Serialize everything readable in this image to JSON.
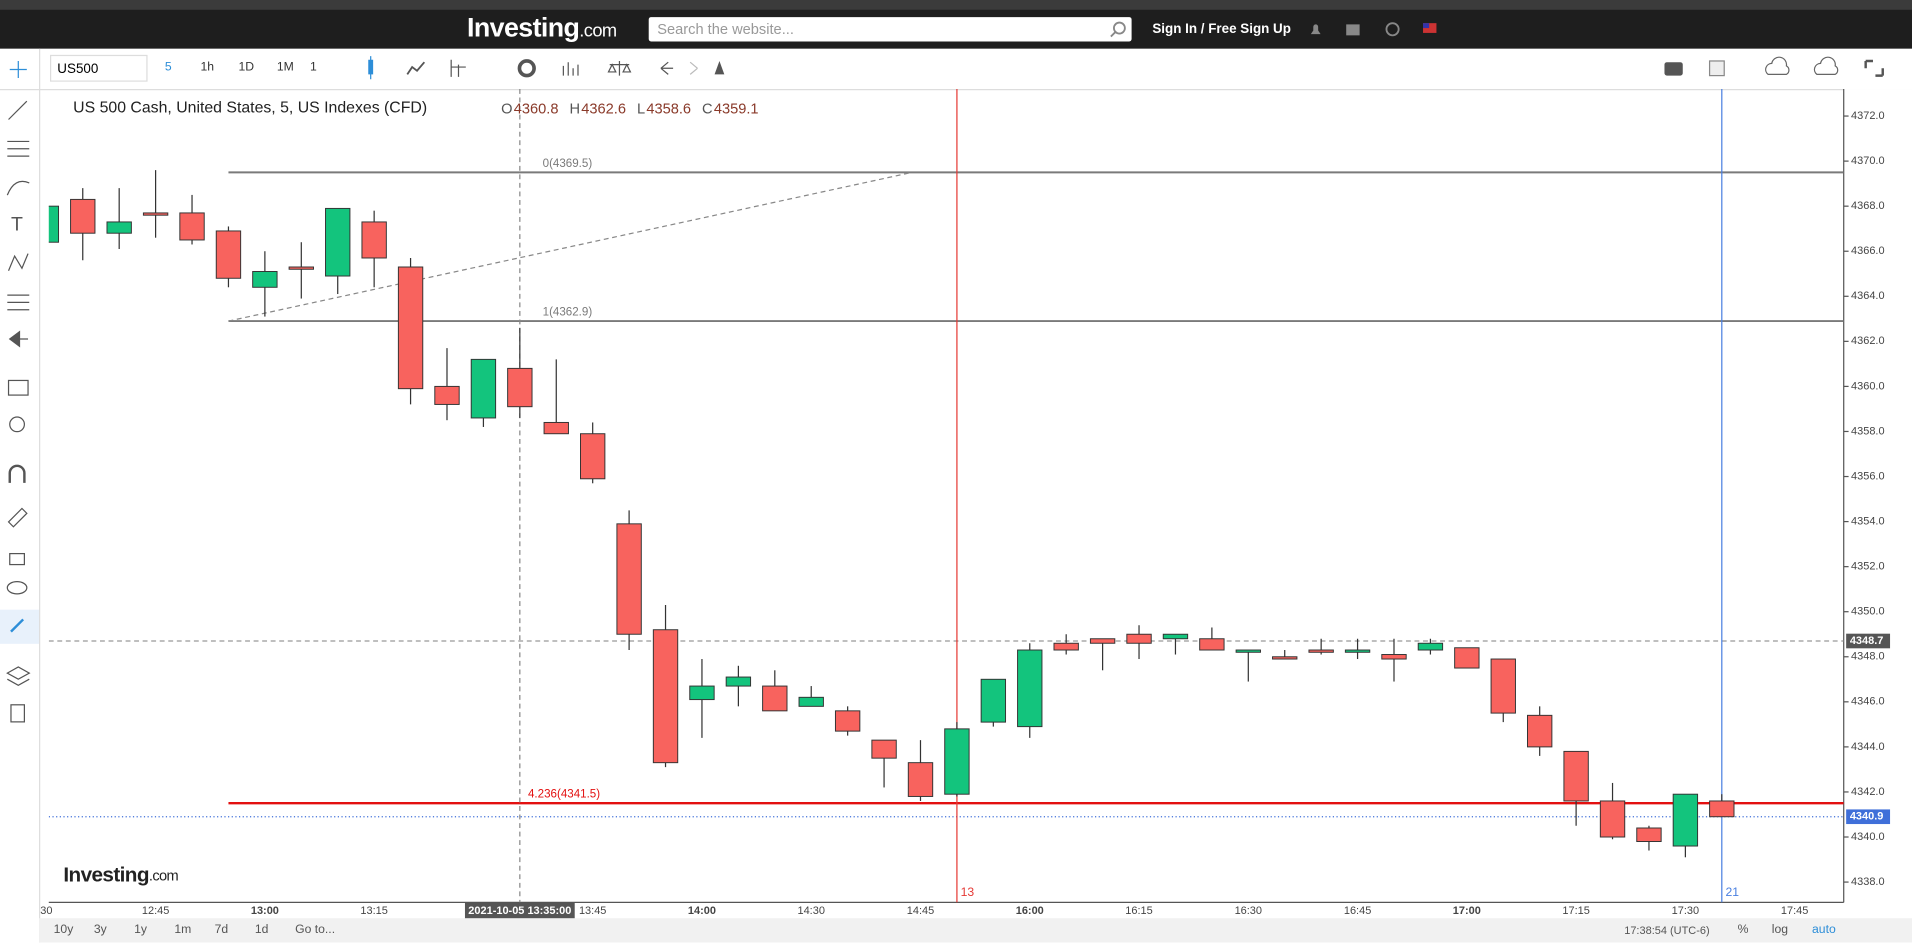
{
  "header": {
    "logo": [
      "Investing",
      ".com"
    ],
    "search_placeholder": "Search the website...",
    "sign_in": "Sign In / Free Sign Up"
  },
  "toolbar": {
    "symbol": "US500",
    "intervals": [
      "5",
      "1h",
      "1D",
      "1M"
    ],
    "multiplier": "1"
  },
  "footer": {
    "ranges": [
      "10y",
      "3y",
      "1y",
      "1m",
      "7d",
      "1d",
      "Go to..."
    ],
    "clock": "17:38:54 (UTC-6)",
    "scale_options": [
      "%",
      "log",
      "auto"
    ]
  },
  "chart_data": {
    "type": "candlestick",
    "title": "US 500 Cash, United States, 5, US Indexes (CFD)",
    "watermark": [
      "Investing",
      ".com"
    ],
    "ohlc_labels": [
      "O",
      "H",
      "L",
      "C"
    ],
    "categories": [
      "30",
      null,
      null,
      "12:45",
      null,
      null,
      "13:00",
      null,
      null,
      "13:15",
      null,
      null,
      null,
      null,
      null,
      "13:45",
      null,
      null,
      "14:00",
      null,
      null,
      "14:30",
      null,
      null,
      "14:45",
      null,
      null,
      "16:00",
      null,
      null,
      "16:15",
      null,
      null,
      "16:30",
      null,
      null,
      "16:45",
      null,
      null,
      "17:00",
      null,
      null,
      "17:15",
      null,
      null,
      "17:30",
      null,
      null,
      "17:45"
    ],
    "open": [
      4366.4,
      4368.3,
      4366.8,
      4367.7,
      4367.7,
      4366.9,
      4364.4,
      4365.3,
      4364.9,
      4367.3,
      4365.3,
      4360.0,
      4358.6,
      4360.8,
      4358.4,
      4357.9,
      4353.9,
      4349.2,
      4346.1,
      4346.7,
      4346.7,
      4345.8,
      4345.6,
      4344.3,
      4343.3,
      4341.9,
      4345.1,
      4344.9,
      4348.6,
      4348.8,
      4349.0,
      4348.8,
      4348.8,
      4348.2,
      4348.0,
      4348.3,
      4348.2,
      4348.1,
      4348.3,
      4348.4,
      4347.9,
      4345.4,
      4343.8,
      4341.6,
      4340.4,
      4339.6,
      4341.6,
      null,
      null
    ],
    "high": [
      4368.1,
      4368.8,
      4368.8,
      4369.6,
      4368.5,
      4367.1,
      4366.0,
      4366.4,
      4367.9,
      4367.8,
      4365.7,
      4361.7,
      4361.2,
      4362.6,
      4361.2,
      4358.4,
      4354.5,
      4350.3,
      4347.9,
      4347.6,
      4347.4,
      4346.7,
      4345.8,
      4344.3,
      4344.3,
      4345.1,
      4347.0,
      4348.6,
      4349.0,
      4348.8,
      4349.4,
      4349.0,
      4349.3,
      4348.3,
      4348.3,
      4348.8,
      4348.8,
      4348.8,
      4348.8,
      4348.4,
      4347.9,
      4345.8,
      4343.8,
      4342.4,
      4340.5,
      4341.9,
      4341.9,
      null,
      null
    ],
    "low": [
      4366.4,
      4365.6,
      4366.1,
      4366.6,
      4366.3,
      4364.4,
      4363.1,
      4363.9,
      4364.1,
      4364.4,
      4359.2,
      4358.5,
      4358.2,
      4358.6,
      4357.9,
      4355.7,
      4348.3,
      4343.1,
      4344.4,
      4345.8,
      4345.6,
      4345.8,
      4344.5,
      4342.2,
      4341.6,
      4341.8,
      4344.9,
      4344.4,
      4348.1,
      4347.4,
      4347.9,
      4348.1,
      4348.3,
      4346.9,
      4347.9,
      4348.1,
      4347.9,
      4346.9,
      4348.1,
      4347.5,
      4345.1,
      4343.6,
      4340.5,
      4339.9,
      4339.4,
      4339.1,
      4340.9,
      null,
      null
    ],
    "close": [
      4368.0,
      4366.8,
      4367.3,
      4367.6,
      4366.5,
      4364.8,
      4365.1,
      4365.2,
      4367.9,
      4365.7,
      4359.9,
      4359.2,
      4361.2,
      4359.1,
      4357.9,
      4355.9,
      4349.0,
      4343.3,
      4346.7,
      4347.1,
      4345.6,
      4346.2,
      4344.7,
      4343.5,
      4341.8,
      4344.8,
      4347.0,
      4348.3,
      4348.3,
      4348.6,
      4348.6,
      4349.0,
      4348.3,
      4348.3,
      4347.9,
      4348.2,
      4348.3,
      4347.9,
      4348.6,
      4347.5,
      4345.5,
      4344.0,
      4341.6,
      4340.0,
      4339.8,
      4341.9,
      4340.9,
      null,
      null
    ],
    "up_color": "#13c47d",
    "down_color": "#f8635e",
    "ylim": [
      4337.1,
      4373.2
    ],
    "yticks": [
      {
        "value": 4338,
        "label": "4338.0"
      },
      {
        "value": 4340,
        "label": "4340.0"
      },
      {
        "value": 4342,
        "label": "4342.0"
      },
      {
        "value": 4344,
        "label": "4344.0"
      },
      {
        "value": 4346,
        "label": "4346.0"
      },
      {
        "value": 4348,
        "label": "4348.0"
      },
      {
        "value": 4350,
        "label": "4350.0"
      },
      {
        "value": 4352,
        "label": "4352.0"
      },
      {
        "value": 4354,
        "label": "4354.0"
      },
      {
        "value": 4356,
        "label": "4356.0"
      },
      {
        "value": 4358,
        "label": "4358.0"
      },
      {
        "value": 4360,
        "label": "4360.0"
      },
      {
        "value": 4362,
        "label": "4362.0"
      },
      {
        "value": 4364,
        "label": "4364.0"
      },
      {
        "value": 4366,
        "label": "4366.0"
      },
      {
        "value": 4368,
        "label": "4368.0"
      },
      {
        "value": 4370,
        "label": "4370.0"
      },
      {
        "value": 4372,
        "label": "4372.0"
      }
    ],
    "fib_levels": [
      {
        "label": "0(4369.5)",
        "value": 4369.5,
        "color": "#7a7a7a"
      },
      {
        "label": "1(4362.9)",
        "value": 4362.9,
        "color": "#7a7a7a"
      },
      {
        "label": "4.236(4341.5)",
        "value": 4341.5,
        "color": "#e31010"
      }
    ],
    "crosshair_time": "2021-10-05 13:35:00",
    "crosshair_price": 4348.7,
    "last_price": 4340.9,
    "markers": [
      {
        "label": "13",
        "color": "#e53935"
      },
      {
        "label": "21",
        "color": "#4a7fe0"
      }
    ]
  }
}
